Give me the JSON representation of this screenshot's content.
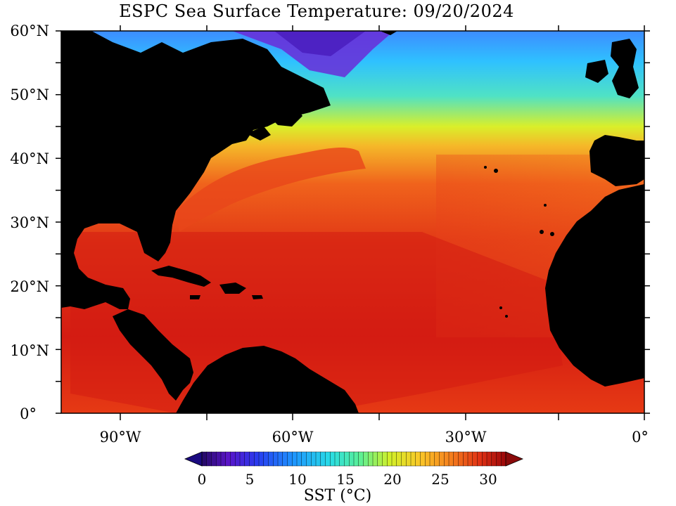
{
  "title": "ESPC Sea Surface Temperature: 09/20/2024",
  "lat_labels": [
    "60°N",
    "50°N",
    "40°N",
    "30°N",
    "20°N",
    "10°N",
    "0°"
  ],
  "lon_labels": [
    "90°W",
    "60°W",
    "30°W",
    "0°"
  ],
  "colorbar": {
    "ticks": [
      "0",
      "5",
      "10",
      "15",
      "20",
      "25",
      "30"
    ],
    "label": "SST (°C)",
    "min": -2,
    "max": 32,
    "extend": "both"
  },
  "colors": {
    "land": "#000000",
    "warm": "#d81a10",
    "cold": "#2a1fc8"
  }
}
